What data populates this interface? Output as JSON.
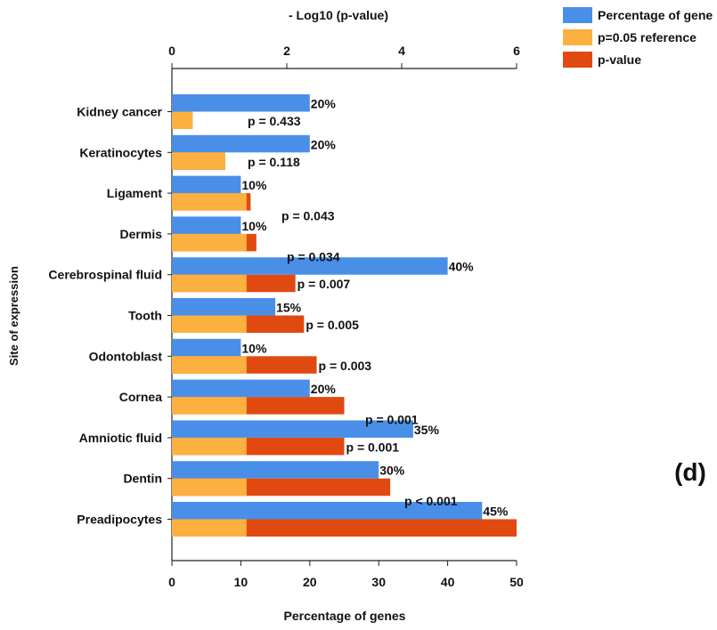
{
  "chart_data": {
    "type": "bar",
    "orientation": "horizontal",
    "top_axis_label": "- Log10 (p-value)",
    "top_axis_ticks": [
      "0",
      "2",
      "4",
      "6"
    ],
    "top_axis_range": [
      0,
      6
    ],
    "xlabel": "Percentage of genes",
    "x_ticks": [
      "0",
      "10",
      "20",
      "30",
      "40",
      "50"
    ],
    "xlim": [
      0,
      50
    ],
    "ylabel": "Site of expression",
    "panel_label": "(d)",
    "colors": {
      "percentage": "#4a8fe7",
      "reference": "#fbb040",
      "pvalue": "#e04a10"
    },
    "categories": [
      "Kidney cancer",
      "Keratinocytes",
      "Ligament",
      "Dermis",
      "Cerebrospinal fluid",
      "Tooth",
      "Odontoblast",
      "Cornea",
      "Amniotic fluid",
      "Dentin",
      "Preadipocytes"
    ],
    "series": [
      {
        "name": "Percentage of gene",
        "axis": "bottom",
        "values": [
          20,
          20,
          10,
          10,
          40,
          15,
          10,
          20,
          35,
          30,
          45
        ],
        "labels": [
          "20%",
          "20%",
          "10%",
          "10%",
          "40%",
          "15%",
          "10%",
          "20%",
          "35%",
          "30%",
          "45%"
        ]
      },
      {
        "name": "p=0.05 reference",
        "axis": "top",
        "values": [
          0.36,
          0.93,
          1.3,
          1.3,
          1.3,
          1.3,
          1.3,
          1.3,
          1.3,
          1.3,
          1.3
        ]
      },
      {
        "name": "p-value",
        "axis": "top",
        "values": [
          0.36,
          0.93,
          1.37,
          1.47,
          2.15,
          2.3,
          2.52,
          3.0,
          3.0,
          3.8,
          6.0
        ],
        "labels": [
          "p = 0.433",
          "p = 0.118",
          "p = 0.043",
          "p = 0.034",
          "p = 0.007",
          "p = 0.005",
          "p = 0.003",
          "p = 0.001",
          "p = 0.001",
          "p < 0.001",
          ""
        ]
      }
    ],
    "legend": [
      "Percentage of gene",
      "p=0.05 reference",
      "p-value"
    ],
    "legend_position": "top-right",
    "grid": false
  }
}
